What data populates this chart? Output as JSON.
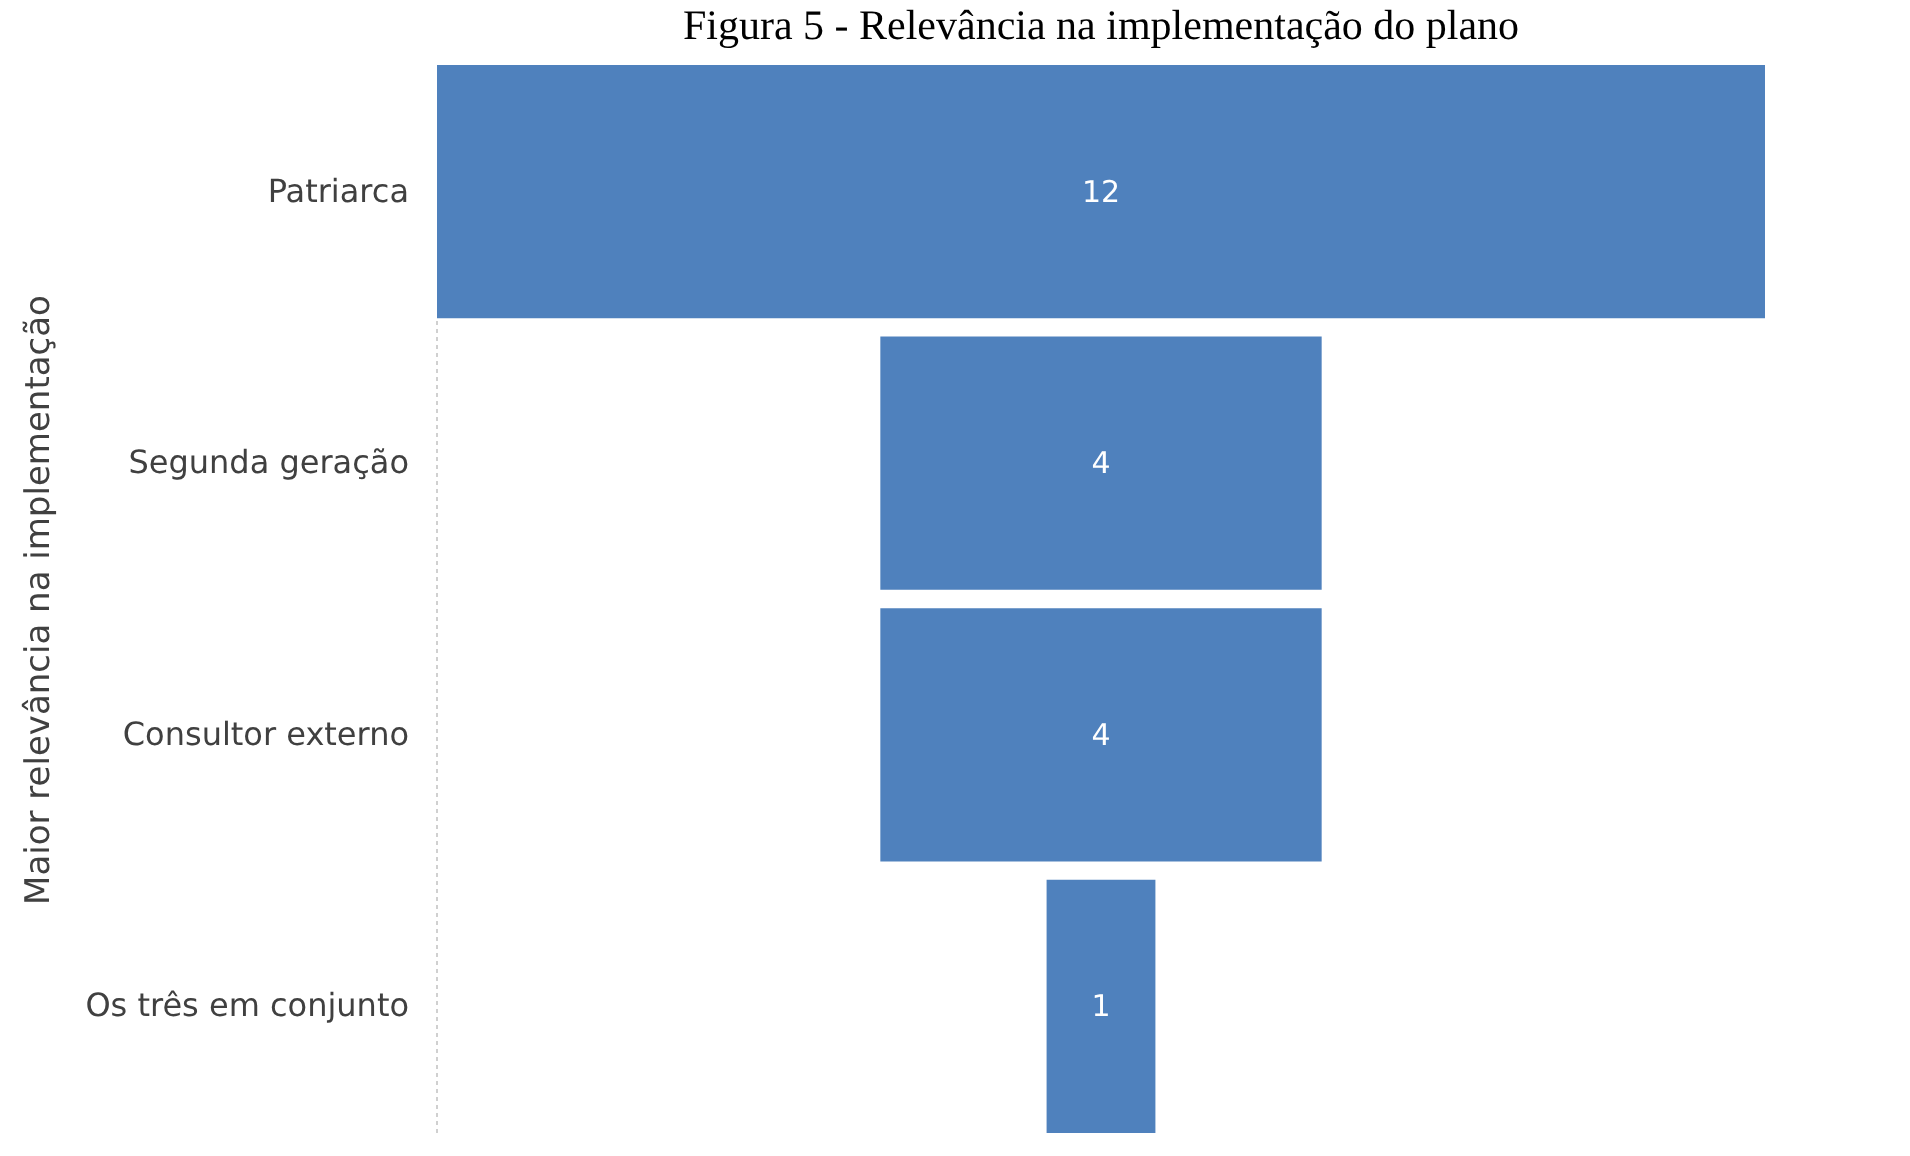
{
  "chart_data": {
    "type": "other",
    "title": "Figura 5 - Relevância na implementação do plano",
    "ylabel": "Maior relevância na implementação",
    "categories": [
      "Patriarca",
      "Segunda geração",
      "Consultor externo",
      "Os três em conjunto"
    ],
    "values": [
      12,
      4,
      4,
      1
    ],
    "color": "#4f81bd",
    "data_labels": true
  }
}
